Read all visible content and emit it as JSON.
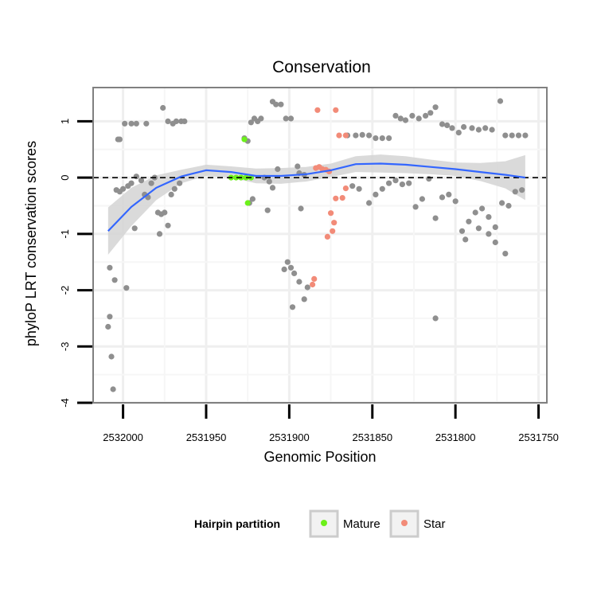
{
  "chart_data": {
    "type": "scatter",
    "title": "Conservation",
    "xlabel": "Genomic Position",
    "ylabel": "phyloP LRT conservation scores",
    "x_reversed": true,
    "xlim": [
      2532018,
      2531745
    ],
    "ylim": [
      -4,
      1.6
    ],
    "x_ticks": [
      2532000,
      2531950,
      2531900,
      2531850,
      2531800,
      2531750
    ],
    "x_tick_labels": [
      "2532000",
      "2531950",
      "2531900",
      "2531850",
      "2531800",
      "2531750"
    ],
    "y_ticks": [
      -4,
      -3,
      -2,
      -1,
      0,
      1
    ],
    "y_tick_labels": [
      "-4",
      "-3",
      "-2",
      "-1",
      "0",
      "1"
    ],
    "reference_line": {
      "y": 0,
      "style": "dashed"
    },
    "legend": {
      "title": "Hairpin partition",
      "position": "bottom",
      "entries": [
        {
          "label": "Mature",
          "color": "#6cf01a"
        },
        {
          "label": "Star",
          "color": "#f28b78"
        }
      ]
    },
    "colors": {
      "other": "#8f8f8f",
      "mature": "#6cf01a",
      "star": "#f28b78",
      "smooth": "#3366ff",
      "band": "#d3d3d3"
    },
    "series": [
      {
        "name": "Other",
        "points": [
          [
            2532009,
            -2.65
          ],
          [
            2532008,
            -2.47
          ],
          [
            2532007,
            -3.18
          ],
          [
            2532006,
            -3.76
          ],
          [
            2532008,
            -1.6
          ],
          [
            2532005,
            -1.82
          ],
          [
            2531998,
            -1.96
          ],
          [
            2532003,
            0.68
          ],
          [
            2532002,
            0.68
          ],
          [
            2531999,
            0.96
          ],
          [
            2531995,
            0.96
          ],
          [
            2531992,
            0.96
          ],
          [
            2531986,
            0.96
          ],
          [
            2531976,
            1.24
          ],
          [
            2531973,
            1.0
          ],
          [
            2531970,
            0.96
          ],
          [
            2531968,
            1.0
          ],
          [
            2531965,
            1.0
          ],
          [
            2531963,
            1.0
          ],
          [
            2532004,
            -0.22
          ],
          [
            2532002,
            -0.25
          ],
          [
            2532000,
            -0.2
          ],
          [
            2531997,
            -0.15
          ],
          [
            2531995,
            -0.1
          ],
          [
            2531992,
            0.02
          ],
          [
            2531989,
            -0.05
          ],
          [
            2531987,
            -0.3
          ],
          [
            2531985,
            -0.35
          ],
          [
            2531983,
            -0.1
          ],
          [
            2531981,
            0.0
          ],
          [
            2531979,
            -0.62
          ],
          [
            2531977,
            -0.65
          ],
          [
            2531975,
            -0.62
          ],
          [
            2531973,
            -0.85
          ],
          [
            2531978,
            -1.0
          ],
          [
            2531971,
            -0.3
          ],
          [
            2531969,
            -0.2
          ],
          [
            2531966,
            -0.1
          ],
          [
            2531993,
            -0.9
          ],
          [
            2531927,
            0.7
          ],
          [
            2531925,
            0.65
          ],
          [
            2531923,
            0.98
          ],
          [
            2531921,
            1.05
          ],
          [
            2531919,
            1.0
          ],
          [
            2531917,
            1.05
          ],
          [
            2531910,
            1.35
          ],
          [
            2531908,
            1.3
          ],
          [
            2531905,
            1.3
          ],
          [
            2531902,
            1.05
          ],
          [
            2531899,
            1.05
          ],
          [
            2531924,
            -0.45
          ],
          [
            2531922,
            -0.38
          ],
          [
            2531915,
            0.0
          ],
          [
            2531912,
            -0.07
          ],
          [
            2531910,
            -0.18
          ],
          [
            2531907,
            0.15
          ],
          [
            2531913,
            -0.58
          ],
          [
            2531895,
            0.2
          ],
          [
            2531893,
            -0.55
          ],
          [
            2531894,
            0.08
          ],
          [
            2531891,
            0.05
          ],
          [
            2531903,
            -1.63
          ],
          [
            2531901,
            -1.5
          ],
          [
            2531899,
            -1.6
          ],
          [
            2531897,
            -1.7
          ],
          [
            2531894,
            -1.85
          ],
          [
            2531891,
            -2.16
          ],
          [
            2531889,
            -1.95
          ],
          [
            2531898,
            -2.3
          ],
          [
            2531865,
            0.75
          ],
          [
            2531860,
            0.75
          ],
          [
            2531856,
            0.76
          ],
          [
            2531852,
            0.75
          ],
          [
            2531848,
            0.7
          ],
          [
            2531844,
            0.7
          ],
          [
            2531840,
            0.7
          ],
          [
            2531836,
            1.1
          ],
          [
            2531833,
            1.05
          ],
          [
            2531830,
            1.02
          ],
          [
            2531826,
            1.1
          ],
          [
            2531822,
            1.05
          ],
          [
            2531818,
            1.1
          ],
          [
            2531815,
            1.15
          ],
          [
            2531812,
            1.25
          ],
          [
            2531808,
            0.95
          ],
          [
            2531805,
            0.93
          ],
          [
            2531802,
            0.88
          ],
          [
            2531798,
            0.8
          ],
          [
            2531795,
            0.9
          ],
          [
            2531790,
            0.88
          ],
          [
            2531786,
            0.85
          ],
          [
            2531782,
            0.88
          ],
          [
            2531778,
            0.85
          ],
          [
            2531773,
            1.36
          ],
          [
            2531770,
            0.75
          ],
          [
            2531766,
            0.75
          ],
          [
            2531762,
            0.75
          ],
          [
            2531758,
            0.75
          ],
          [
            2531862,
            -0.15
          ],
          [
            2531858,
            -0.2
          ],
          [
            2531852,
            -0.45
          ],
          [
            2531848,
            -0.3
          ],
          [
            2531844,
            -0.2
          ],
          [
            2531840,
            -0.1
          ],
          [
            2531836,
            -0.05
          ],
          [
            2531832,
            -0.12
          ],
          [
            2531828,
            -0.1
          ],
          [
            2531824,
            -0.52
          ],
          [
            2531820,
            -0.38
          ],
          [
            2531816,
            -0.02
          ],
          [
            2531812,
            -0.72
          ],
          [
            2531808,
            -0.35
          ],
          [
            2531804,
            -0.3
          ],
          [
            2531800,
            -0.42
          ],
          [
            2531796,
            -0.95
          ],
          [
            2531792,
            -0.78
          ],
          [
            2531788,
            -0.62
          ],
          [
            2531784,
            -0.55
          ],
          [
            2531780,
            -0.7
          ],
          [
            2531776,
            -0.88
          ],
          [
            2531772,
            -0.45
          ],
          [
            2531768,
            -0.5
          ],
          [
            2531764,
            -0.25
          ],
          [
            2531812,
            -2.5
          ],
          [
            2531794,
            -1.1
          ],
          [
            2531786,
            -0.9
          ],
          [
            2531776,
            -1.15
          ],
          [
            2531770,
            -1.35
          ],
          [
            2531780,
            -1.0
          ],
          [
            2531760,
            -0.22
          ]
        ]
      },
      {
        "name": "Mature",
        "points": [
          [
            2531935,
            0.0
          ],
          [
            2531932,
            0.0
          ],
          [
            2531929,
            0.0
          ],
          [
            2531926,
            0.0
          ],
          [
            2531923,
            0.0
          ],
          [
            2531927,
            0.68
          ],
          [
            2531925,
            -0.45
          ]
        ]
      },
      {
        "name": "Star",
        "points": [
          [
            2531884,
            0.17
          ],
          [
            2531882,
            0.19
          ],
          [
            2531880,
            0.15
          ],
          [
            2531878,
            0.14
          ],
          [
            2531876,
            0.11
          ],
          [
            2531872,
            -0.37
          ],
          [
            2531868,
            -0.36
          ],
          [
            2531866,
            -0.19
          ],
          [
            2531875,
            -0.63
          ],
          [
            2531873,
            -0.8
          ],
          [
            2531877,
            -1.05
          ],
          [
            2531874,
            -0.95
          ],
          [
            2531885,
            -1.8
          ],
          [
            2531886,
            -1.9
          ],
          [
            2531883,
            1.2
          ],
          [
            2531872,
            1.2
          ],
          [
            2531870,
            0.75
          ],
          [
            2531866,
            0.75
          ]
        ]
      }
    ],
    "smooth_curve": [
      [
        2532009,
        -0.95
      ],
      [
        2531995,
        -0.52
      ],
      [
        2531980,
        -0.18
      ],
      [
        2531965,
        0.02
      ],
      [
        2531950,
        0.13
      ],
      [
        2531935,
        0.1
      ],
      [
        2531920,
        0.03
      ],
      [
        2531905,
        0.03
      ],
      [
        2531890,
        0.06
      ],
      [
        2531875,
        0.13
      ],
      [
        2531860,
        0.24
      ],
      [
        2531845,
        0.25
      ],
      [
        2531830,
        0.23
      ],
      [
        2531815,
        0.19
      ],
      [
        2531800,
        0.15
      ],
      [
        2531785,
        0.1
      ],
      [
        2531770,
        0.05
      ],
      [
        2531758,
        0.0
      ]
    ],
    "confidence_halfwidth": [
      0.42,
      0.34,
      0.22,
      0.12,
      0.1,
      0.1,
      0.13,
      0.14,
      0.13,
      0.12,
      0.14,
      0.16,
      0.15,
      0.13,
      0.12,
      0.16,
      0.24,
      0.4
    ]
  }
}
